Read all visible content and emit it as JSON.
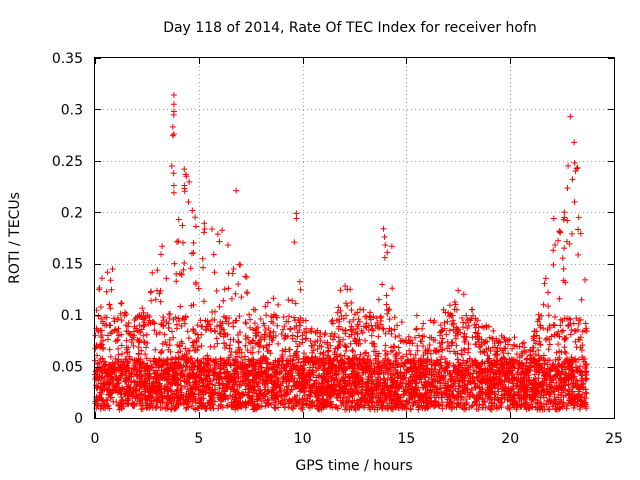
{
  "chart_data": {
    "type": "scatter",
    "title": "Day 118 of 2014, Rate Of TEC Index for receiver hofn",
    "xlabel": "GPS time / hours",
    "ylabel": "ROTI / TECUs",
    "xlim": [
      0,
      25
    ],
    "ylim": [
      0,
      0.35
    ],
    "xticks": [
      0,
      5,
      10,
      15,
      20,
      25
    ],
    "xtick_labels": [
      "0",
      "5",
      "10",
      "15",
      "20",
      "25"
    ],
    "yticks": [
      0,
      0.05,
      0.1,
      0.15,
      0.2,
      0.25,
      0.3,
      0.35
    ],
    "ytick_labels": [
      "0",
      "0.05",
      "0.1",
      "0.15",
      "0.2",
      "0.25",
      "0.3",
      "0.35"
    ],
    "grid": true,
    "marker": "+",
    "color": "#ff0000",
    "x_range_of_data": [
      0,
      23.7
    ],
    "envelope": [
      [
        0.0,
        0.12
      ],
      [
        0.5,
        0.15
      ],
      [
        1.0,
        0.15
      ],
      [
        1.5,
        0.11
      ],
      [
        2.0,
        0.1
      ],
      [
        2.5,
        0.13
      ],
      [
        3.0,
        0.16
      ],
      [
        3.5,
        0.2
      ],
      [
        3.8,
        0.31
      ],
      [
        4.0,
        0.23
      ],
      [
        4.5,
        0.24
      ],
      [
        5.0,
        0.2
      ],
      [
        5.5,
        0.18
      ],
      [
        6.0,
        0.2
      ],
      [
        6.5,
        0.17
      ],
      [
        7.0,
        0.16
      ],
      [
        7.5,
        0.13
      ],
      [
        8.0,
        0.11
      ],
      [
        8.5,
        0.12
      ],
      [
        9.0,
        0.11
      ],
      [
        9.5,
        0.12
      ],
      [
        9.8,
        0.2
      ],
      [
        10.0,
        0.1
      ],
      [
        10.5,
        0.09
      ],
      [
        11.0,
        0.08
      ],
      [
        11.5,
        0.1
      ],
      [
        12.0,
        0.15
      ],
      [
        12.5,
        0.11
      ],
      [
        13.0,
        0.11
      ],
      [
        13.5,
        0.1
      ],
      [
        14.0,
        0.18
      ],
      [
        14.5,
        0.1
      ],
      [
        15.0,
        0.09
      ],
      [
        15.5,
        0.1
      ],
      [
        16.0,
        0.09
      ],
      [
        16.5,
        0.11
      ],
      [
        17.0,
        0.11
      ],
      [
        17.5,
        0.13
      ],
      [
        18.0,
        0.12
      ],
      [
        18.5,
        0.1
      ],
      [
        19.0,
        0.09
      ],
      [
        19.5,
        0.08
      ],
      [
        20.0,
        0.08
      ],
      [
        20.5,
        0.08
      ],
      [
        21.0,
        0.07
      ],
      [
        21.5,
        0.12
      ],
      [
        22.0,
        0.16
      ],
      [
        22.5,
        0.19
      ],
      [
        23.0,
        0.29
      ],
      [
        23.3,
        0.25
      ],
      [
        23.7,
        0.12
      ]
    ],
    "outliers": [
      {
        "x": 3.8,
        "y": 0.314
      },
      {
        "x": 3.8,
        "y": 0.305
      },
      {
        "x": 3.8,
        "y": 0.298
      },
      {
        "x": 3.75,
        "y": 0.283
      },
      {
        "x": 3.8,
        "y": 0.276
      },
      {
        "x": 3.7,
        "y": 0.245
      },
      {
        "x": 3.8,
        "y": 0.226
      },
      {
        "x": 3.8,
        "y": 0.219
      },
      {
        "x": 4.3,
        "y": 0.242
      },
      {
        "x": 4.4,
        "y": 0.235
      },
      {
        "x": 6.8,
        "y": 0.221
      },
      {
        "x": 9.7,
        "y": 0.199
      },
      {
        "x": 9.7,
        "y": 0.194
      },
      {
        "x": 9.6,
        "y": 0.171
      },
      {
        "x": 13.9,
        "y": 0.184
      },
      {
        "x": 13.95,
        "y": 0.176
      },
      {
        "x": 14.3,
        "y": 0.167
      },
      {
        "x": 22.1,
        "y": 0.194
      },
      {
        "x": 22.9,
        "y": 0.293
      },
      {
        "x": 23.1,
        "y": 0.248
      },
      {
        "x": 23.15,
        "y": 0.24
      },
      {
        "x": 23.0,
        "y": 0.232
      },
      {
        "x": 23.1,
        "y": 0.21
      },
      {
        "x": 23.3,
        "y": 0.195
      }
    ]
  }
}
